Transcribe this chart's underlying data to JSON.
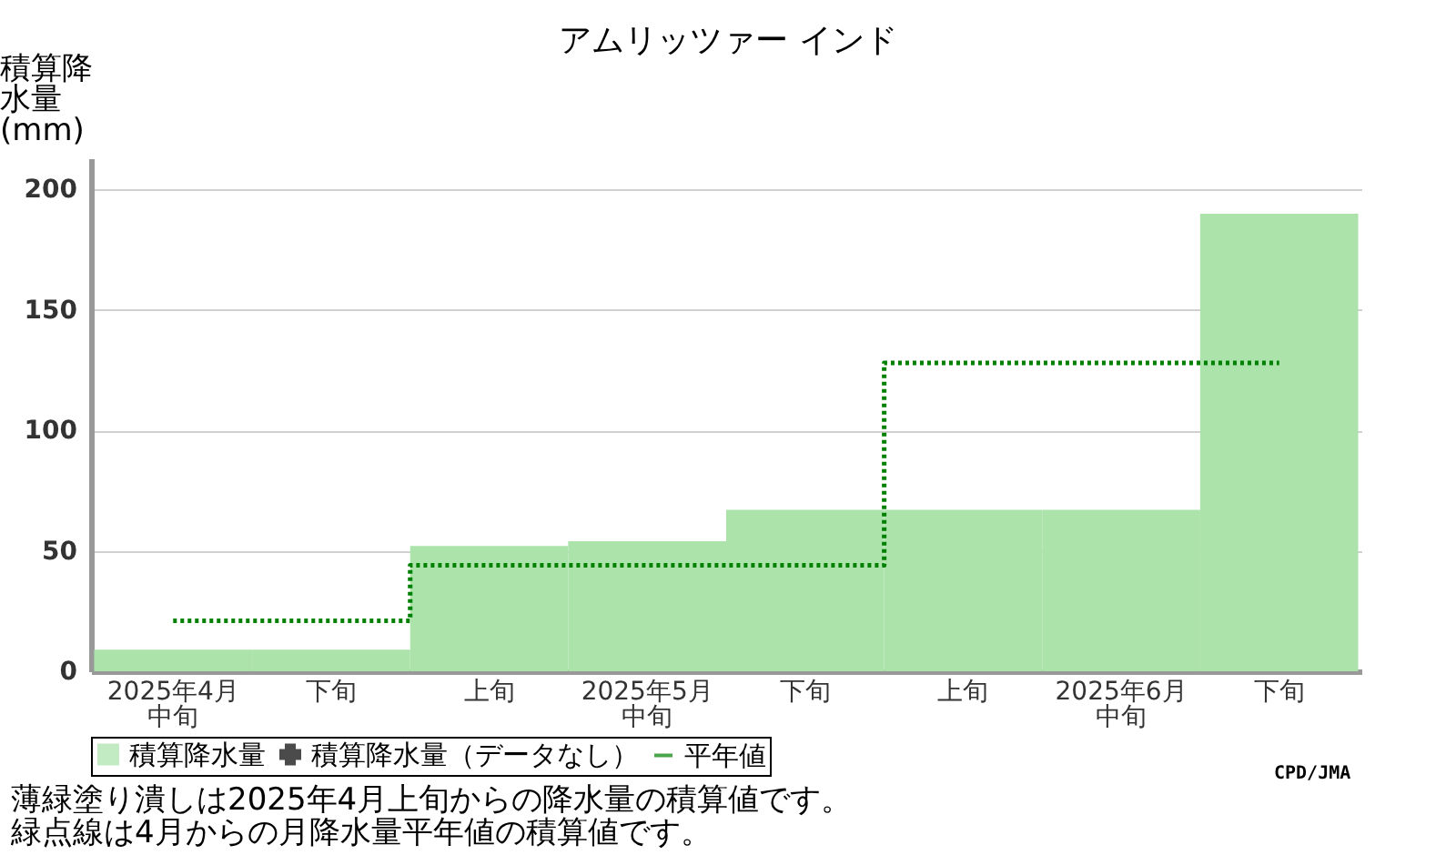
{
  "chart_data": {
    "type": "bar",
    "title": "アムリッツァー インド",
    "ylabel": "積算降水量(mm)",
    "categories": [
      "2025年4月中旬",
      "下旬",
      "上旬",
      "2025年5月中旬",
      "下旬",
      "上旬",
      "2025年6月中旬",
      "下旬"
    ],
    "series": [
      {
        "name": "積算降水量",
        "color": "#abe3ab",
        "values": [
          9,
          9,
          52,
          54,
          67,
          67,
          67,
          190
        ]
      },
      {
        "name": "積算降水量（データなし）",
        "type": "scatter",
        "marker": "cross",
        "color": "#000000",
        "values": [
          null,
          null,
          null,
          null,
          null,
          null,
          null,
          null
        ]
      },
      {
        "name": "平年値",
        "type": "step",
        "line_style": "dotted",
        "color": "#008000",
        "values": [
          21,
          21,
          44,
          44,
          44,
          128,
          128,
          128
        ]
      }
    ],
    "ylim": [
      0,
      213
    ],
    "yticks": [
      0,
      50,
      100,
      150,
      200
    ],
    "grid": "y",
    "legend": "bottom",
    "annotations": [
      "CPD/JMA",
      "薄緑塗り潰しは2025年4月上旬からの降水量の積算値です。",
      "緑点線は4月からの月降水量平年値の積算値です。"
    ]
  }
}
